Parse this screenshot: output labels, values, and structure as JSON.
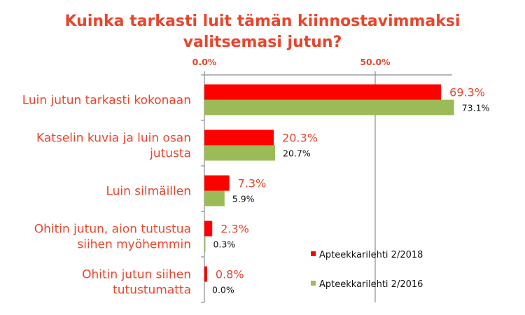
{
  "chart_data": {
    "type": "bar",
    "orientation": "horizontal",
    "title_lines": [
      "Kuinka tarkasti luit tämän kiinnostavimmaksi",
      "valitsemasi jutun?"
    ],
    "x_ticks": [
      "0.0%",
      "50.0%"
    ],
    "xlim": [
      0,
      100
    ],
    "grid": "vertical at 50%",
    "legend_position": "bottom-right",
    "categories": [
      [
        "Luin jutun tarkasti kokonaan"
      ],
      [
        "Katselin kuvia ja luin osan",
        "jutusta"
      ],
      [
        "Luin silmäillen"
      ],
      [
        "Ohitin jutun, aion tutustua",
        "siihen myöhemmin"
      ],
      [
        "Ohitin jutun siihen",
        "tutustumatta"
      ]
    ],
    "series": [
      {
        "name": "Apteekkarilehti 2/2018",
        "color": "#ff0000",
        "values": [
          69.3,
          20.3,
          7.3,
          2.3,
          0.8
        ],
        "labels": [
          "69.3%",
          "20.3%",
          "7.3%",
          "2.3%",
          "0.8%"
        ]
      },
      {
        "name": "Apteekkarilehti 2/2016",
        "color": "#9bbb59",
        "values": [
          73.1,
          20.7,
          5.9,
          0.3,
          0.0
        ],
        "labels": [
          "73.1%",
          "20.7%",
          "5.9%",
          "0.3%",
          "0.0%"
        ]
      }
    ]
  }
}
